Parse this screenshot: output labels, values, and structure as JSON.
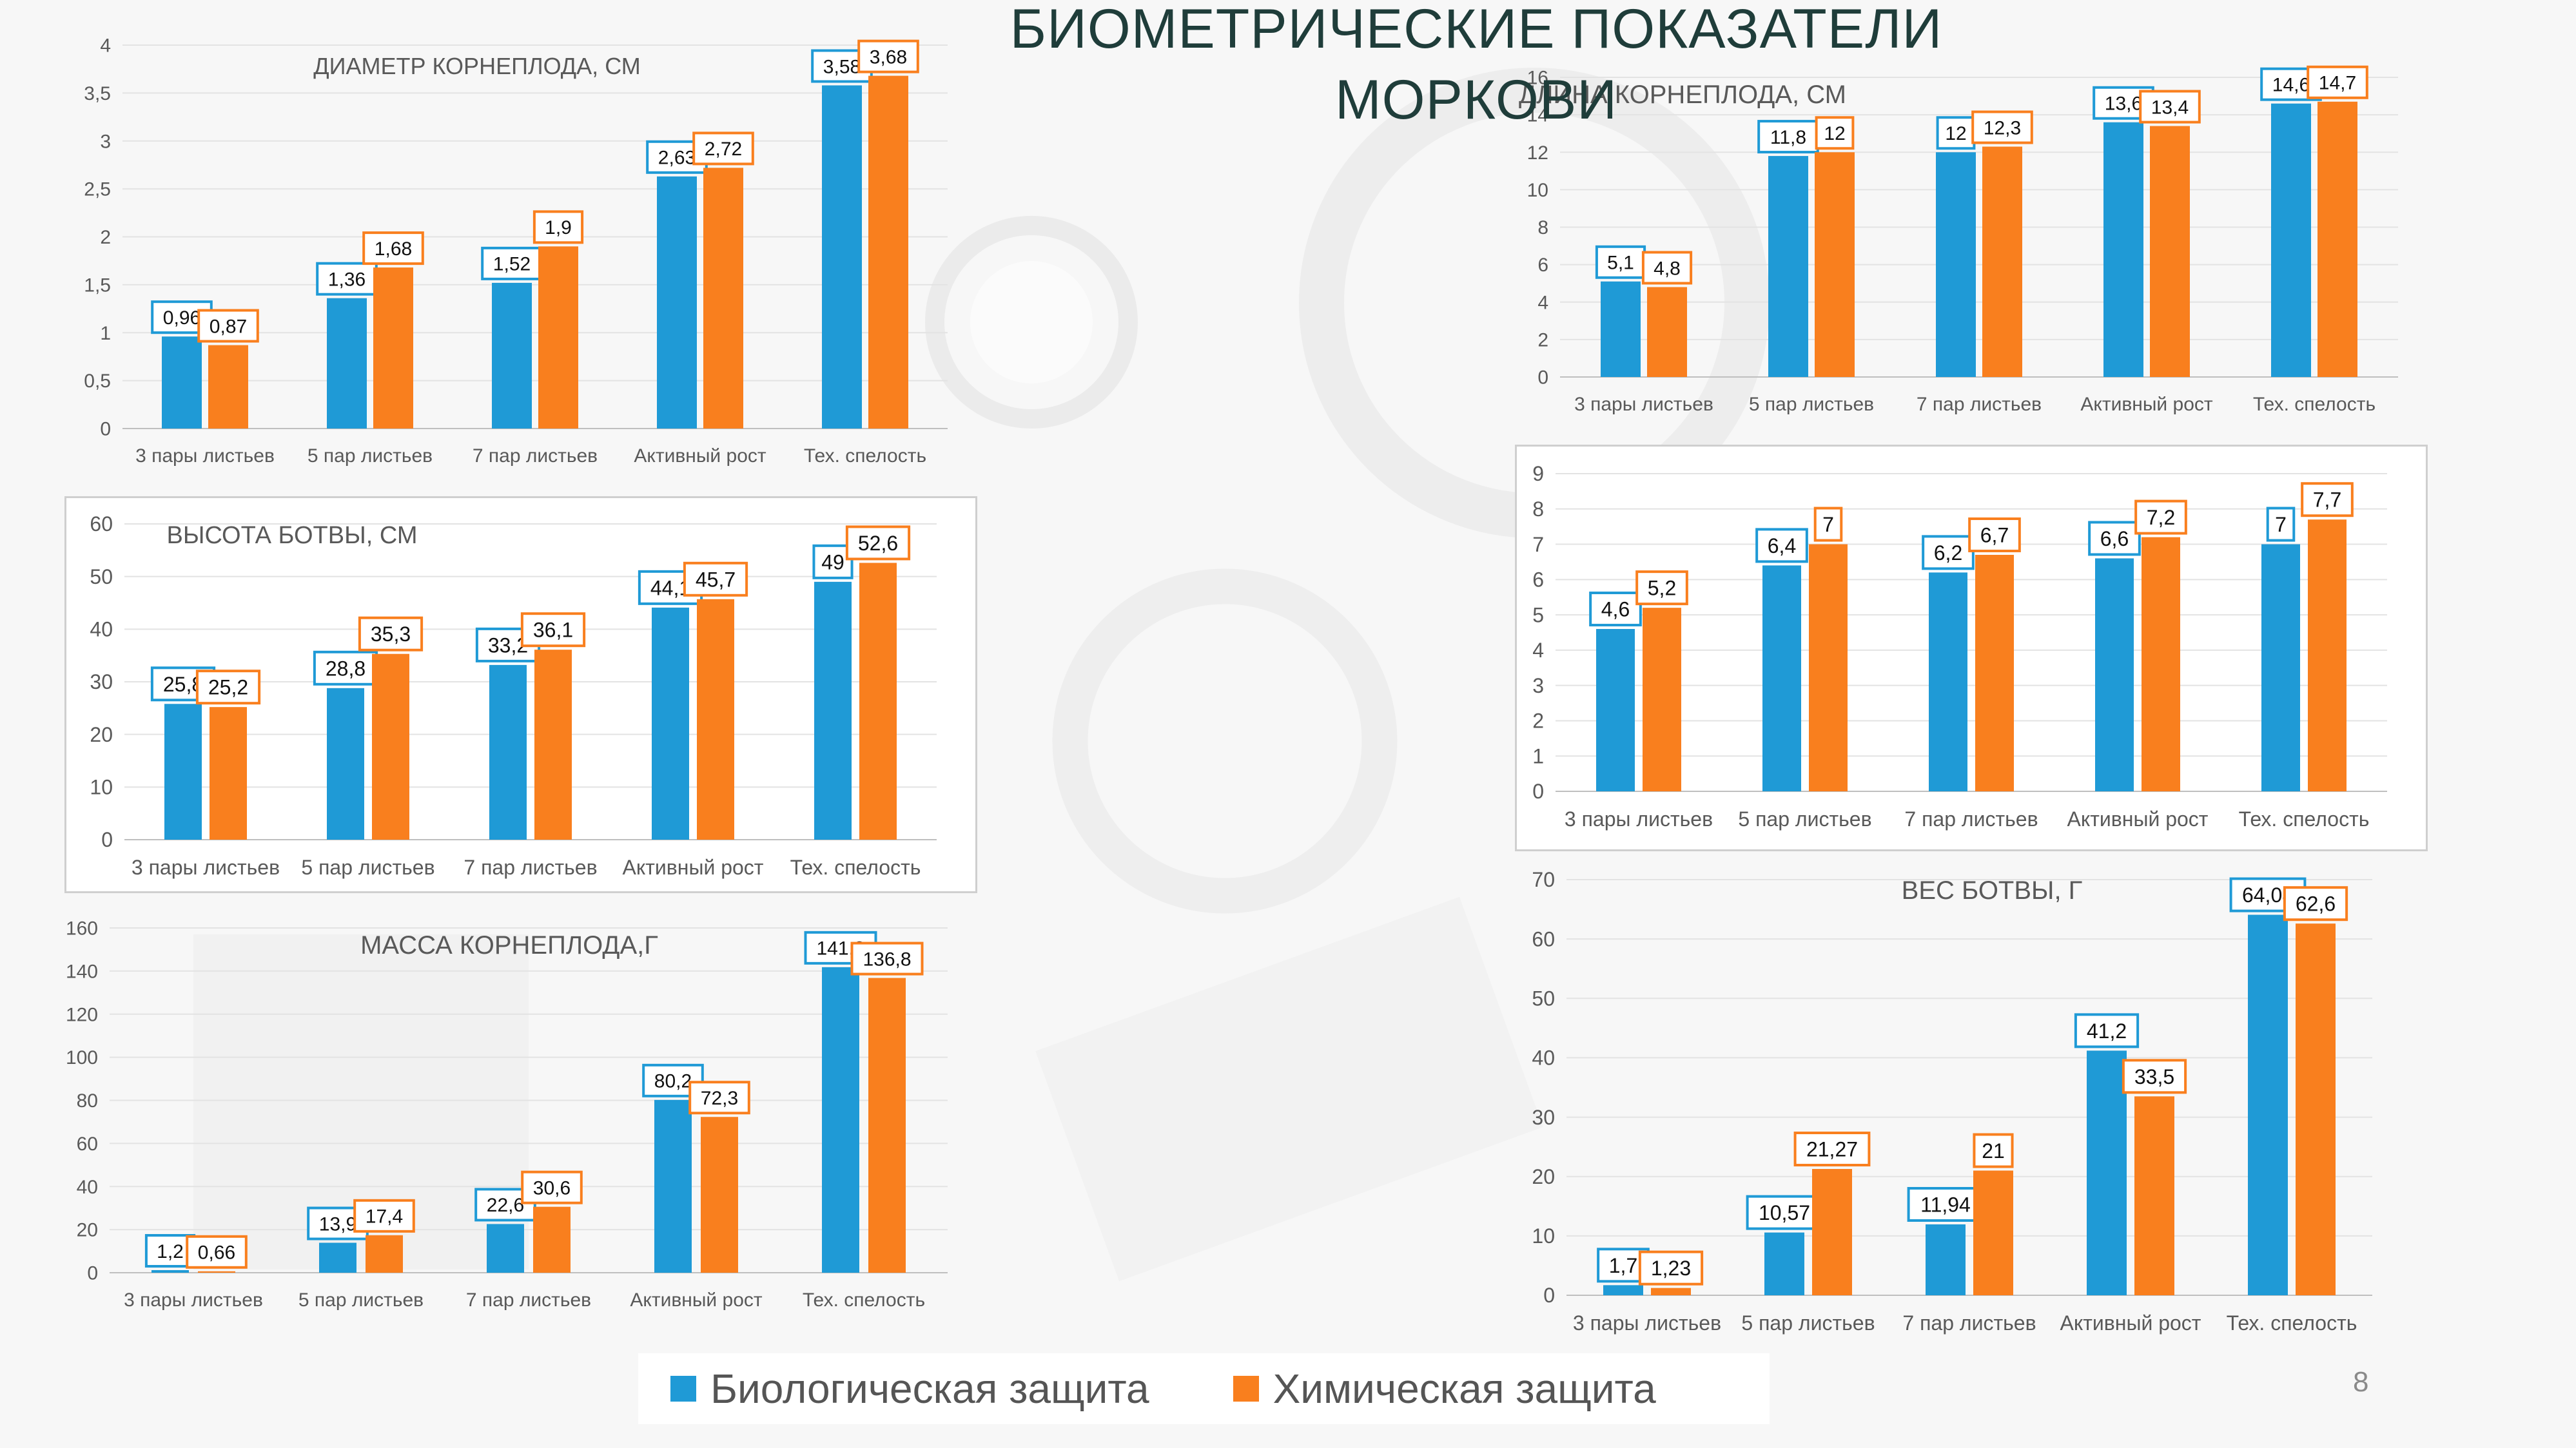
{
  "title": "БИОМЕТРИЧЕСКИЕ ПОКАЗАТЕЛИ МОРКОВИ",
  "page_number": "8",
  "colors": {
    "bio": "#1f9ad6",
    "chem": "#f97f1e"
  },
  "legend": [
    {
      "label": "Биологическая защита",
      "color": "#1f9ad6"
    },
    {
      "label": "Химическая защита",
      "color": "#f97f1e"
    }
  ],
  "chart_data": [
    {
      "id": "root-diameter",
      "type": "bar",
      "title": "ДИАМЕТР КОРНЕПЛОДА, СМ",
      "categories": [
        "3 пары листьев",
        "5 пар листьев",
        "7 пар листьев",
        "Активный рост",
        "Тех. спелость"
      ],
      "series": [
        {
          "values": [
            0.96,
            1.36,
            1.52,
            2.63,
            3.58
          ],
          "labels": [
            "0,96",
            "1,36",
            "1,52",
            "2,63",
            "3,58"
          ]
        },
        {
          "values": [
            0.87,
            1.68,
            1.9,
            2.72,
            3.68
          ],
          "labels": [
            "0,87",
            "1,68",
            "1,9",
            "2,72",
            "3,68"
          ]
        }
      ],
      "ylim": [
        0,
        4
      ],
      "yticks": [
        "0",
        "0,5",
        "1",
        "1,5",
        "2",
        "2,5",
        "3",
        "3,5",
        "4"
      ],
      "legend": "none"
    },
    {
      "id": "root-length",
      "type": "bar",
      "title": "ДЛИНА КОРНЕПЛОДА, СМ",
      "categories": [
        "3 пары листьев",
        "5 пар листьев",
        "7 пар листьев",
        "Активный рост",
        "Тех. спелость"
      ],
      "series": [
        {
          "values": [
            5.1,
            11.8,
            12,
            13.6,
            14.6
          ],
          "labels": [
            "5,1",
            "11,8",
            "12",
            "13,6",
            "14,6"
          ]
        },
        {
          "values": [
            4.8,
            12,
            12.3,
            13.4,
            14.7
          ],
          "labels": [
            "4,8",
            "12",
            "12,3",
            "13,4",
            "14,7"
          ]
        }
      ],
      "ylim": [
        0,
        16
      ],
      "yticks": [
        "0",
        "2",
        "4",
        "6",
        "8",
        "10",
        "12",
        "14",
        "16"
      ],
      "legend": "none"
    },
    {
      "id": "top-height",
      "type": "bar",
      "title": "ВЫСОТА БОТВЫ, СМ",
      "categories": [
        "3 пары листьев",
        "5 пар листьев",
        "7 пар листьев",
        "Активный рост",
        "Тех. спелость"
      ],
      "series": [
        {
          "values": [
            25.8,
            28.8,
            33.2,
            44.1,
            49
          ],
          "labels": [
            "25,8",
            "28,8",
            "33,2",
            "44,1",
            "49"
          ]
        },
        {
          "values": [
            25.2,
            35.3,
            36.1,
            45.7,
            52.6
          ],
          "labels": [
            "25,2",
            "35,3",
            "36,1",
            "45,7",
            "52,6"
          ]
        }
      ],
      "ylim": [
        0,
        60
      ],
      "yticks": [
        "0",
        "10",
        "20",
        "30",
        "40",
        "50",
        "60"
      ],
      "legend": "none"
    },
    {
      "id": "untitled",
      "type": "bar",
      "title": "",
      "categories": [
        "3 пары листьев",
        "5 пар листьев",
        "7 пар листьев",
        "Активный рост",
        "Тех. спелость"
      ],
      "series": [
        {
          "values": [
            4.6,
            6.4,
            6.2,
            6.6,
            7
          ],
          "labels": [
            "4,6",
            "6,4",
            "6,2",
            "6,6",
            "7"
          ]
        },
        {
          "values": [
            5.2,
            7,
            6.7,
            7.2,
            7.7
          ],
          "labels": [
            "5,2",
            "7",
            "6,7",
            "7,2",
            "7,7"
          ]
        }
      ],
      "ylim": [
        0,
        9
      ],
      "yticks": [
        "0",
        "1",
        "2",
        "3",
        "4",
        "5",
        "6",
        "7",
        "8",
        "9"
      ],
      "legend": "none"
    },
    {
      "id": "root-mass",
      "type": "bar",
      "title": "МАССА КОРНЕПЛОДА,Г",
      "categories": [
        "3 пары листьев",
        "5 пар листьев",
        "7 пар листьев",
        "Активный рост",
        "Тех. спелость"
      ],
      "series": [
        {
          "values": [
            1.2,
            13.9,
            22.6,
            80.2,
            141.8
          ],
          "labels": [
            "1,2",
            "13,9",
            "22,6",
            "80,2",
            "141,8"
          ]
        },
        {
          "values": [
            0.66,
            17.4,
            30.6,
            72.3,
            136.8
          ],
          "labels": [
            "0,66",
            "17,4",
            "30,6",
            "72,3",
            "136,8"
          ]
        }
      ],
      "ylim": [
        0,
        160
      ],
      "yticks": [
        "0",
        "20",
        "40",
        "60",
        "80",
        "100",
        "120",
        "140",
        "160"
      ],
      "legend": "none"
    },
    {
      "id": "top-weight",
      "type": "bar",
      "title": "ВЕС БОТВЫ, Г",
      "categories": [
        "3 пары листьев",
        "5 пар листьев",
        "7 пар листьев",
        "Активный рост",
        "Тех. спелость"
      ],
      "series": [
        {
          "values": [
            1.7,
            10.57,
            11.94,
            41.2,
            64.08
          ],
          "labels": [
            "1,7",
            "10,57",
            "11,94",
            "41,2",
            "64,08"
          ]
        },
        {
          "values": [
            1.23,
            21.27,
            21,
            33.5,
            62.6
          ],
          "labels": [
            "1,23",
            "21,27",
            "21",
            "33,5",
            "62,6"
          ]
        }
      ],
      "ylim": [
        0,
        70
      ],
      "yticks": [
        "0",
        "10",
        "20",
        "30",
        "40",
        "50",
        "60",
        "70"
      ],
      "legend": "none"
    }
  ]
}
